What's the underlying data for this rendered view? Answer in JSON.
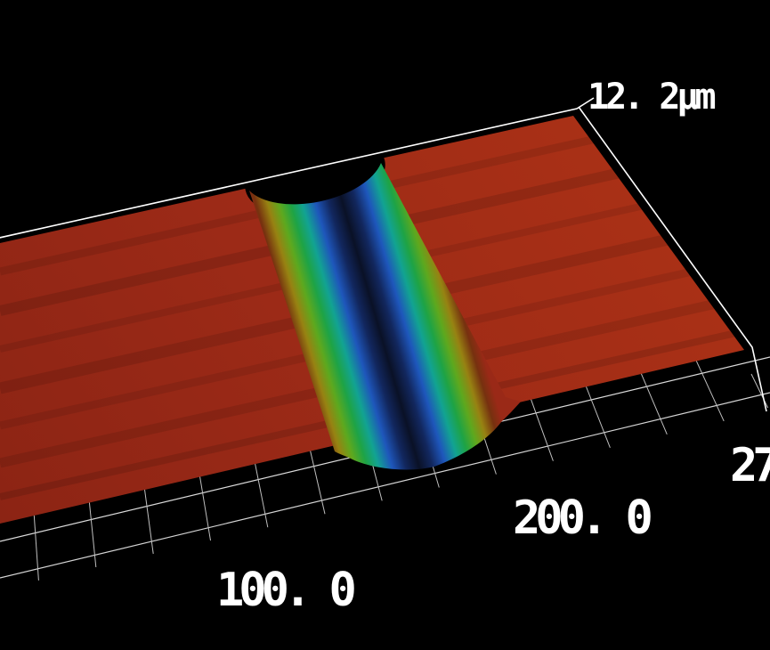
{
  "window": {
    "background": "#000000",
    "description": "3D oblique-view surface height map (profilometer / interferometer style) of a flat plateau with one deep rounded groove"
  },
  "chart_data": {
    "type": "surface",
    "title": "",
    "z_axis": {
      "label": "12. 2µm",
      "max_value_um": 12.2
    },
    "x_axis": {
      "tick_labels": [
        "100. 0",
        "200. 0",
        "27"
      ],
      "tick_values_um": [
        100.0,
        200.0,
        null
      ],
      "minor_gridline_interval_um_est": 20,
      "note": "third label clipped at right image edge"
    },
    "y_axis": {
      "tick_labels": []
    },
    "surface": {
      "plateau_color": "#9e2a17",
      "plateau_height": "near z-max (red in jet colormap)",
      "groove_orientation": "runs along depth (Y) direction",
      "groove_center_x_um_est": 125,
      "groove_width_um_est": 70,
      "groove_depth_um_est": 12,
      "groove_profile": "semicircular channel; darkest navy/black at deepest centerline; front cross-section face visible as half-disc at near edge; black notch where groove meets far edge"
    },
    "colormap": {
      "name": "jet (red=high, dark navy=low)",
      "stops": [
        {
          "offset": 0,
          "color": "#9a2917"
        },
        {
          "offset": 5,
          "color": "#76310f"
        },
        {
          "offset": 11,
          "color": "#978212"
        },
        {
          "offset": 17,
          "color": "#5ea81e"
        },
        {
          "offset": 23,
          "color": "#1ea345"
        },
        {
          "offset": 29,
          "color": "#12a392"
        },
        {
          "offset": 36,
          "color": "#1e56bb"
        },
        {
          "offset": 43,
          "color": "#12275e"
        },
        {
          "offset": 50,
          "color": "#0a1126"
        },
        {
          "offset": 57,
          "color": "#12275e"
        },
        {
          "offset": 64,
          "color": "#1e56bb"
        },
        {
          "offset": 71,
          "color": "#12a392"
        },
        {
          "offset": 77,
          "color": "#1ea345"
        },
        {
          "offset": 83,
          "color": "#5ea81e"
        },
        {
          "offset": 89,
          "color": "#978212"
        },
        {
          "offset": 95,
          "color": "#76310f"
        },
        {
          "offset": 100,
          "color": "#9a2917"
        }
      ]
    },
    "frame": {
      "edge_line_color": "#ffffff",
      "grid_line_color": "#c9c9c9",
      "grid": "floor grid: 2 long lines parallel to front edge plus ~14 leaning depth ticks; white box edges on top/right with short z-axis stub to z label"
    }
  }
}
